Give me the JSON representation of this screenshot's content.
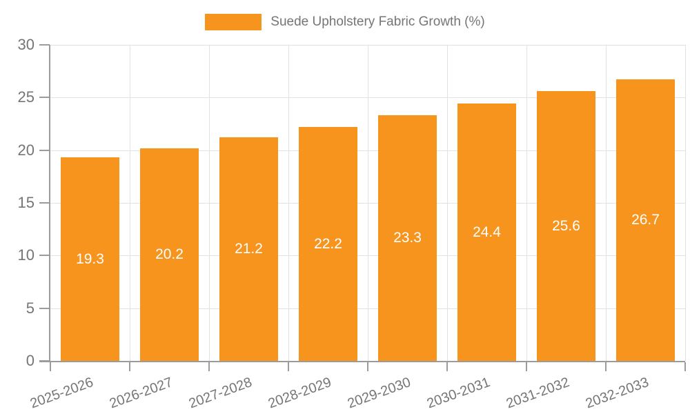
{
  "legend": {
    "label": "Suede Upholstery Fabric Growth (%)",
    "swatch_color": "#f7941e"
  },
  "chart_data": {
    "type": "bar",
    "title": "Suede Upholstery Fabric Growth (%)",
    "categories": [
      "2025-2026",
      "2026-2027",
      "2027-2028",
      "2028-2029",
      "2029-2030",
      "2030-2031",
      "2031-2032",
      "2032-2033"
    ],
    "values": [
      19.3,
      20.2,
      21.2,
      22.2,
      23.3,
      24.4,
      25.6,
      26.7
    ],
    "value_labels": [
      "19.3",
      "20.2",
      "21.2",
      "22.2",
      "23.3",
      "24.4",
      "25.6",
      "26.7"
    ],
    "xlabel": "",
    "ylabel": "",
    "ylim": [
      0,
      30
    ],
    "yticks": [
      0,
      5,
      10,
      15,
      20,
      25,
      30
    ],
    "grid": true,
    "legend_position": "top",
    "bar_color": "#f7941e",
    "bar_label_color": "#ffffff",
    "axis_color": "#9b9b9b",
    "grid_color": "#e2e2e2",
    "text_color": "#757575"
  }
}
